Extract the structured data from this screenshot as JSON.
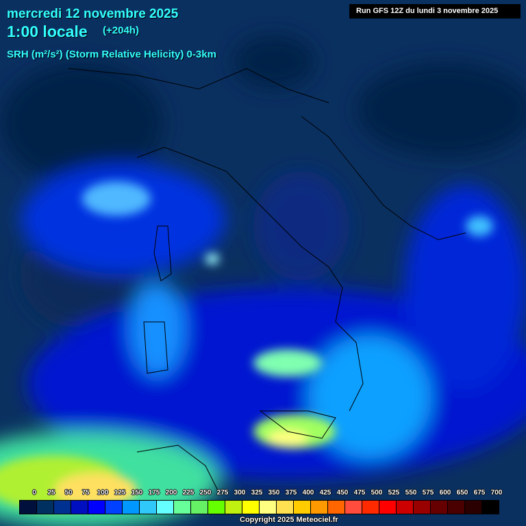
{
  "header": {
    "date": "mercredi 12 novembre 2025",
    "time": "1:00 locale",
    "lead": "(+204h)",
    "parameter": "SRH (m²/s²) (Storm Relative Helicity) 0-3km",
    "run": "Run GFS 12Z du lundi 3 novembre 2025"
  },
  "legend": {
    "labels": [
      "0",
      "25",
      "50",
      "75",
      "100",
      "125",
      "150",
      "175",
      "200",
      "225",
      "250",
      "275",
      "300",
      "325",
      "350",
      "375",
      "400",
      "425",
      "450",
      "475",
      "500",
      "525",
      "550",
      "575",
      "600",
      "650",
      "675",
      "700"
    ],
    "colors": [
      "#00103c",
      "#003060",
      "#003090",
      "#0010c0",
      "#0000ff",
      "#0040ff",
      "#0098ff",
      "#30c8f8",
      "#66ffff",
      "#66ff99",
      "#66f066",
      "#66ff00",
      "#c0f010",
      "#ffff00",
      "#ffff80",
      "#ffe050",
      "#ffcc00",
      "#ff9900",
      "#ff6600",
      "#ff4c3c",
      "#ff2a00",
      "#ff0000",
      "#cc0000",
      "#990000",
      "#660000",
      "#4a0000",
      "#2a0000",
      "#000000"
    ]
  },
  "footer": {
    "copyright": "Copyright 2025 Meteociel.fr"
  }
}
